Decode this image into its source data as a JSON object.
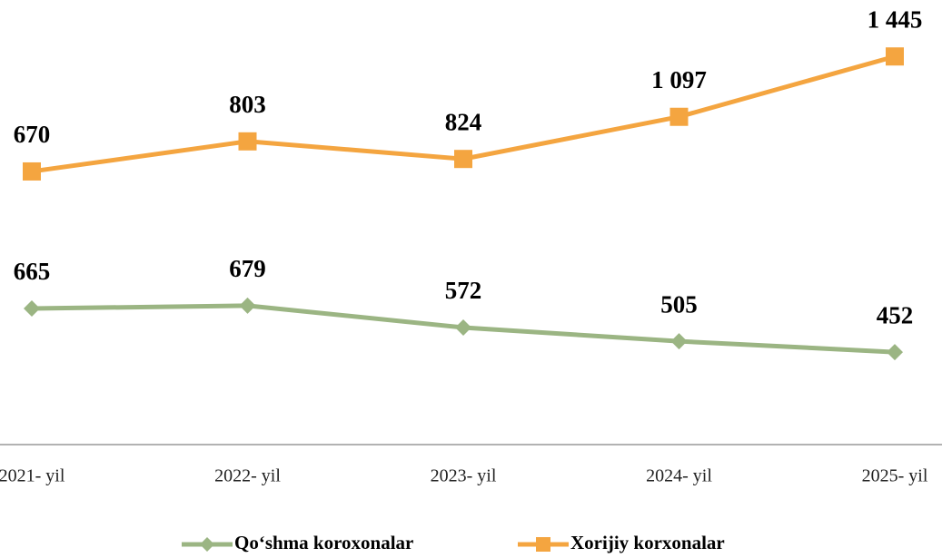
{
  "chart_data": {
    "type": "line",
    "stacked": true,
    "categories": [
      "2021- yil",
      "2022- yil",
      "2023- yil",
      "2024- yil",
      "2025- yil"
    ],
    "series": [
      {
        "name": "Qo‘shma koroxonalar",
        "color": "#9bb583",
        "marker": "diamond",
        "values": [
          665,
          679,
          572,
          505,
          452
        ]
      },
      {
        "name": "Xorijiy korxonalar",
        "color": "#f4a540",
        "marker": "square",
        "values": [
          670,
          803,
          824,
          1097,
          1445
        ],
        "value_labels": [
          "670",
          "803",
          "824",
          "1 097",
          "1 445"
        ]
      }
    ],
    "ylim": [
      0,
      2000
    ]
  }
}
